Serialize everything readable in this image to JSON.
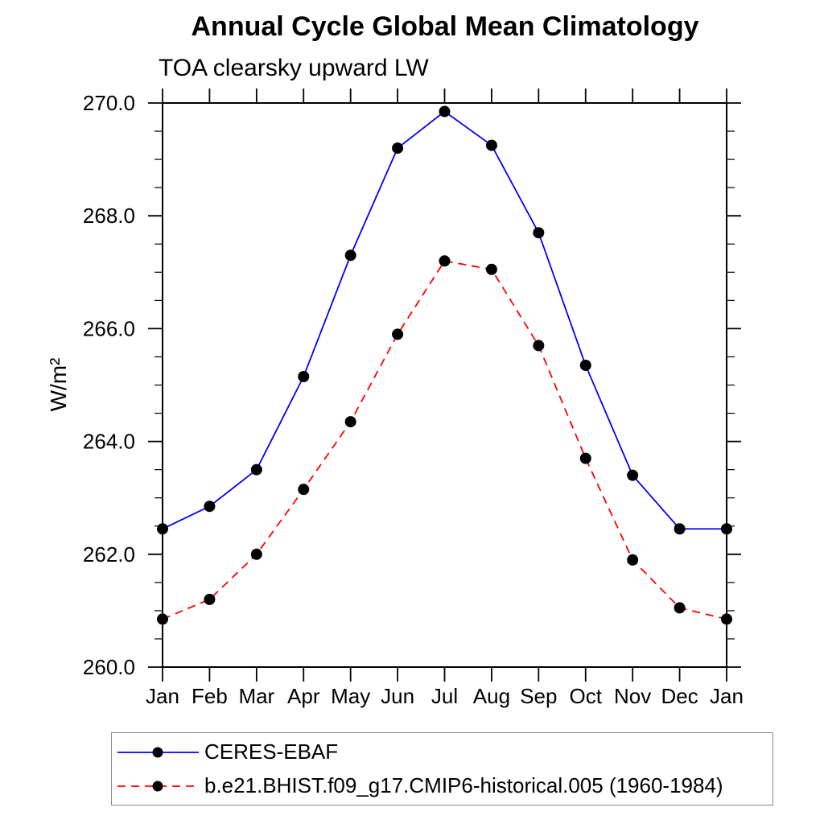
{
  "chart_data": {
    "type": "line",
    "title": "Annual Cycle Global Mean Climatology",
    "subtitle": "TOA clearsky upward LW",
    "ylabel": "W/m²",
    "x_categories": [
      "Jan",
      "Feb",
      "Mar",
      "Apr",
      "May",
      "Jun",
      "Jul",
      "Aug",
      "Sep",
      "Oct",
      "Nov",
      "Dec",
      "Jan"
    ],
    "ylim": [
      260.0,
      270.0
    ],
    "y_major_ticks": [
      260,
      262,
      264,
      266,
      268,
      270
    ],
    "y_tick_labels": [
      "260.0",
      "262.0",
      "264.0",
      "266.0",
      "268.0",
      "270.0"
    ],
    "y_minor_interval": 0.5,
    "grid": false,
    "legend_position": "bottom-left-box",
    "background": "#ffffff",
    "frame_color": "#000000",
    "marker": {
      "shape": "circle",
      "color": "#000000"
    },
    "series": [
      {
        "name": "CERES-EBAF",
        "color": "#0000ff",
        "line_style": "solid",
        "values": [
          262.45,
          262.85,
          263.5,
          265.15,
          267.3,
          269.2,
          269.85,
          269.25,
          267.7,
          265.35,
          263.4,
          262.45,
          262.45
        ]
      },
      {
        "name": "b.e21.BHIST.f09_g17.CMIP6-historical.005 (1960-1984)",
        "color": "#ff0000",
        "line_style": "dashed",
        "values": [
          260.85,
          261.2,
          262.0,
          263.15,
          264.35,
          265.9,
          267.2,
          267.05,
          265.7,
          263.7,
          261.9,
          261.05,
          260.85
        ]
      }
    ]
  }
}
